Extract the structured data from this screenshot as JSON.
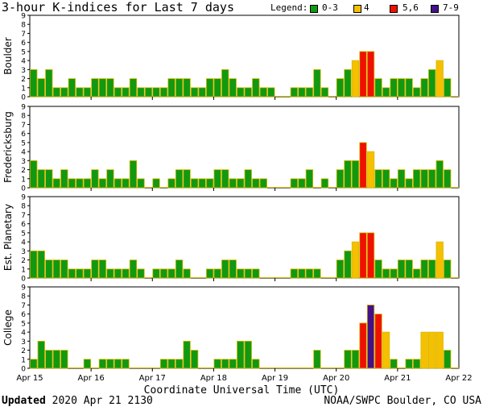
{
  "title": "3-hour K-indices for Last 7 days",
  "legend": {
    "label": "Legend:",
    "items": [
      {
        "label": "0-3",
        "color": "#119911"
      },
      {
        "label": "4",
        "color": "#f5c000"
      },
      {
        "label": "5,6",
        "color": "#ee1100"
      },
      {
        "label": "7-9",
        "color": "#441188"
      }
    ]
  },
  "xlabel": "Coordinate Universal Time (UTC)",
  "footer": {
    "updated_label": "Updated",
    "updated_value": "2020 Apr 21 2130",
    "credit": "NOAA/SWPC Boulder, CO USA"
  },
  "chart_data": {
    "type": "bar",
    "x_ticks": [
      "Apr 15",
      "Apr 16",
      "Apr 17",
      "Apr 18",
      "Apr 19",
      "Apr 20",
      "Apr 21",
      "Apr 22"
    ],
    "ylim": [
      0,
      9
    ],
    "y_ticks": [
      0,
      1,
      2,
      3,
      4,
      5,
      6,
      7,
      8,
      9
    ],
    "color_bins": {
      "0-3": [
        0,
        3
      ],
      "4": [
        4,
        4
      ],
      "5,6": [
        5,
        6
      ],
      "7-9": [
        7,
        9
      ]
    },
    "series": [
      {
        "name": "Boulder",
        "values": [
          3,
          2,
          3,
          1,
          1,
          2,
          1,
          1,
          2,
          2,
          2,
          1,
          1,
          2,
          1,
          1,
          1,
          1,
          2,
          2,
          2,
          1,
          1,
          2,
          2,
          3,
          2,
          1,
          1,
          2,
          1,
          1,
          0,
          0,
          1,
          1,
          1,
          3,
          1,
          0,
          2,
          3,
          4,
          5,
          5,
          2,
          1,
          2,
          2,
          2,
          1,
          2,
          3,
          4,
          2,
          0
        ]
      },
      {
        "name": "Fredericksburg",
        "values": [
          3,
          2,
          2,
          1,
          2,
          1,
          1,
          1,
          2,
          1,
          2,
          1,
          1,
          3,
          1,
          0,
          1,
          0,
          1,
          2,
          2,
          1,
          1,
          1,
          2,
          2,
          1,
          1,
          2,
          1,
          1,
          0,
          0,
          0,
          1,
          1,
          2,
          0,
          1,
          0,
          2,
          3,
          3,
          5,
          4,
          2,
          2,
          1,
          2,
          1,
          2,
          2,
          2,
          3,
          2,
          0
        ]
      },
      {
        "name": "Est. Planetary",
        "values": [
          3,
          3,
          2,
          2,
          2,
          1,
          1,
          1,
          2,
          2,
          1,
          1,
          1,
          2,
          1,
          0,
          1,
          1,
          1,
          2,
          1,
          0,
          0,
          1,
          1,
          2,
          2,
          1,
          1,
          1,
          0,
          0,
          0,
          0,
          1,
          1,
          1,
          1,
          0,
          0,
          2,
          3,
          4,
          5,
          5,
          2,
          1,
          1,
          2,
          2,
          1,
          2,
          2,
          4,
          2,
          0
        ]
      },
      {
        "name": "College",
        "values": [
          1,
          3,
          2,
          2,
          2,
          0,
          0,
          1,
          0,
          1,
          1,
          1,
          1,
          0,
          0,
          0,
          0,
          1,
          1,
          1,
          3,
          2,
          0,
          0,
          1,
          1,
          1,
          3,
          3,
          1,
          0,
          0,
          0,
          0,
          0,
          0,
          0,
          2,
          0,
          0,
          0,
          2,
          2,
          5,
          7,
          6,
          4,
          1,
          0,
          1,
          1,
          4,
          4,
          4,
          2,
          0
        ]
      }
    ]
  }
}
